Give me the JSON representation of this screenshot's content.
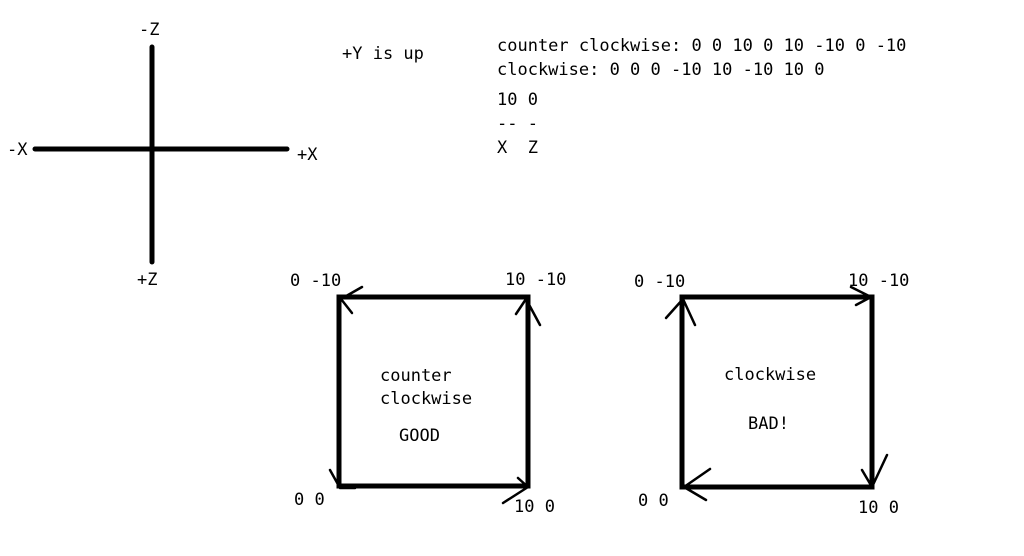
{
  "axes": {
    "neg_z": "-Z",
    "pos_z": "+Z",
    "neg_x": "-X",
    "pos_x": "+X",
    "y_note": "+Y is up"
  },
  "notes": {
    "ccw_line": "counter clockwise: 0 0 10 0 10 -10 0 -10",
    "cw_line": "clockwise: 0 0 0 -10 10 -10 10 0",
    "legend_values": "10 0",
    "legend_dashes": "-- -",
    "legend_axes": "X  Z"
  },
  "squares": [
    {
      "top_left": "0 -10",
      "top_right": "10 -10",
      "bottom_left": "0 0",
      "bottom_right": "10 0",
      "label_1": "counter",
      "label_2": "clockwise",
      "verdict": "GOOD"
    },
    {
      "top_left": "0 -10",
      "top_right": "10 -10",
      "bottom_left": "0 0",
      "bottom_right": "10 0",
      "label_1": "clockwise",
      "verdict": "BAD!"
    }
  ],
  "colors": {
    "ink": "#000000",
    "background": "#ffffff"
  }
}
